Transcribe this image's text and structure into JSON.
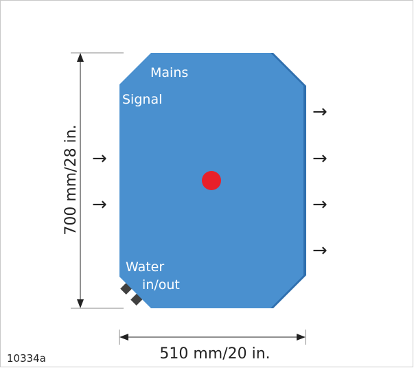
{
  "diagram": {
    "labels": {
      "mains": "Mains",
      "signal": "Signal",
      "water_line1": "Water",
      "water_line2": "in/out"
    },
    "dimensions": {
      "height": "700 mm/28 in.",
      "width": "510 mm/20 in."
    },
    "figure_id": "10334a",
    "arrow_glyph": "→",
    "colors": {
      "body": "#4a90cf",
      "body_edge": "#2f6fae",
      "indicator": "#e8202a",
      "connector": "#404040"
    }
  }
}
